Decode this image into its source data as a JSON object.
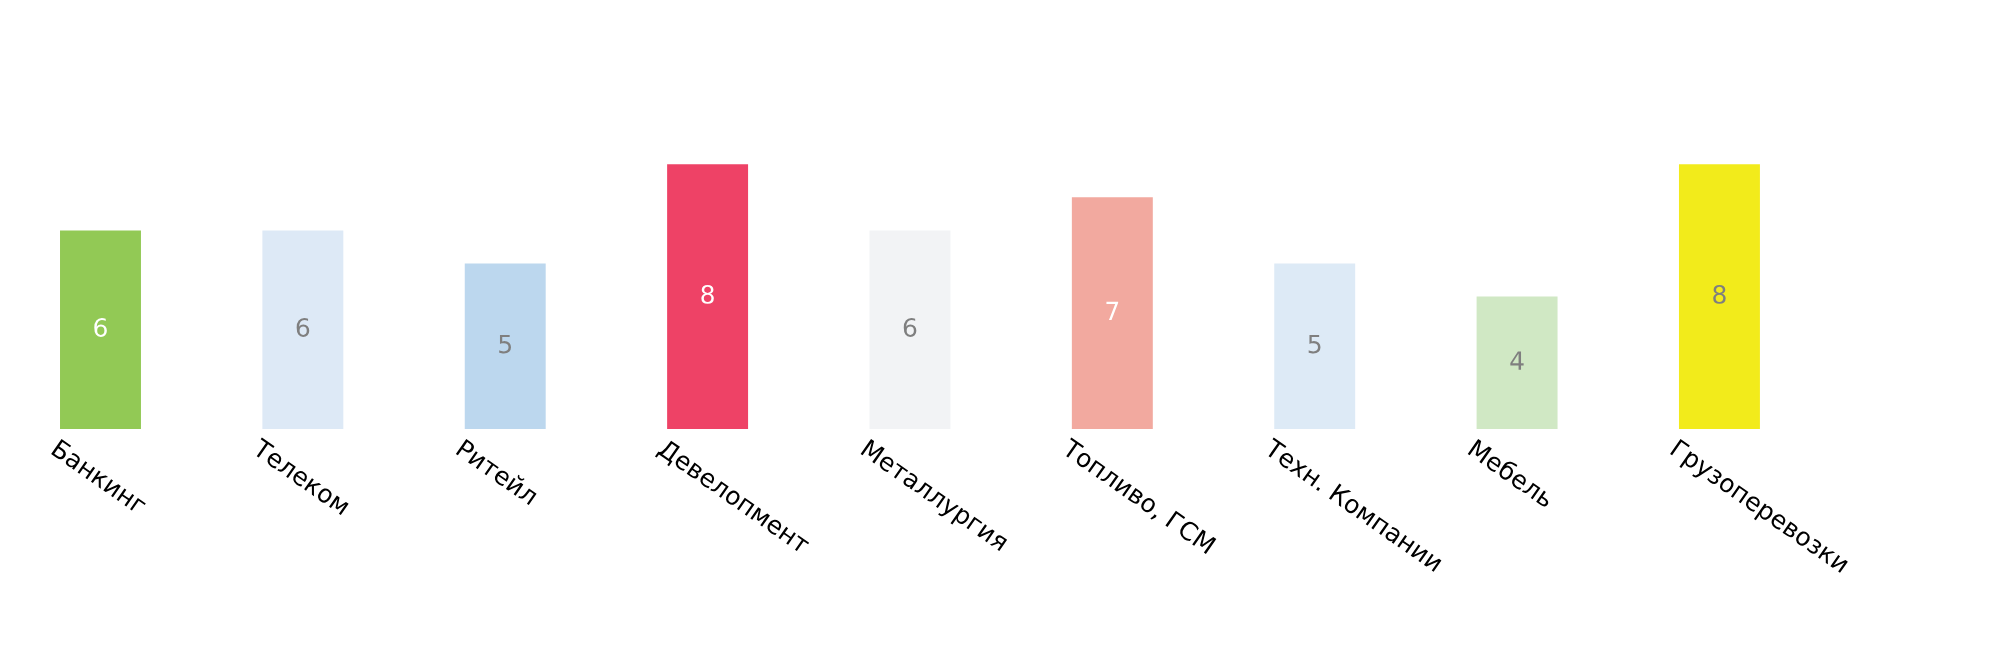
{
  "chart_data": {
    "type": "bar",
    "categories": [
      "Банкинг",
      "Телеком",
      "Ритейл",
      "Девелопмент",
      "Металлургия",
      "Топливо, ГСМ",
      "Техн. Компании",
      "Мебель",
      "Грузоперевозки"
    ],
    "values": [
      6,
      6,
      5,
      8,
      6,
      7,
      5,
      4,
      8
    ],
    "colors": [
      "#92c955",
      "#dde9f6",
      "#bcd7ee",
      "#ee4266",
      "#f2f3f5",
      "#f2a99f",
      "#ddeaf6",
      "#d0e8c4",
      "#f2eb1b"
    ],
    "data_labels": true
  }
}
